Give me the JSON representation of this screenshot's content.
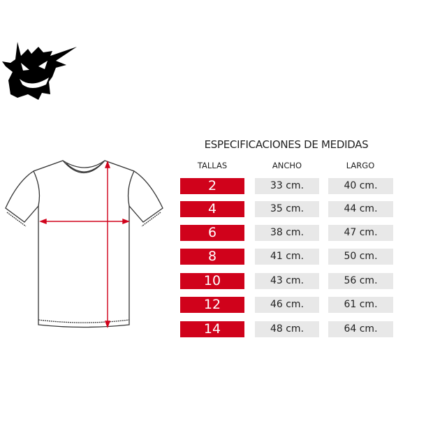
{
  "title": "ESPECIFICACIONES DE MEDIDAS",
  "headers": {
    "size": "TALLAS",
    "width": "ANCHO",
    "length": "LARGO"
  },
  "rows": [
    {
      "size": "2",
      "width": "33 cm.",
      "length": "40 cm."
    },
    {
      "size": "4",
      "width": "35 cm.",
      "length": "44 cm."
    },
    {
      "size": "6",
      "width": "38 cm.",
      "length": "47 cm."
    },
    {
      "size": "8",
      "width": "41 cm.",
      "length": "50 cm."
    },
    {
      "size": "10",
      "width": "43 cm.",
      "length": "56 cm."
    },
    {
      "size": "12",
      "width": "46 cm.",
      "length": "61 cm."
    },
    {
      "size": "14",
      "width": "48 cm.",
      "length": "64 cm."
    }
  ],
  "colors": {
    "size_cell": "#d0021b",
    "value_cell": "#e8e8e8",
    "arrows": "#d0021b"
  },
  "icons": {
    "logo": "ghost-grin-logo",
    "diagram": "tshirt-outline"
  }
}
